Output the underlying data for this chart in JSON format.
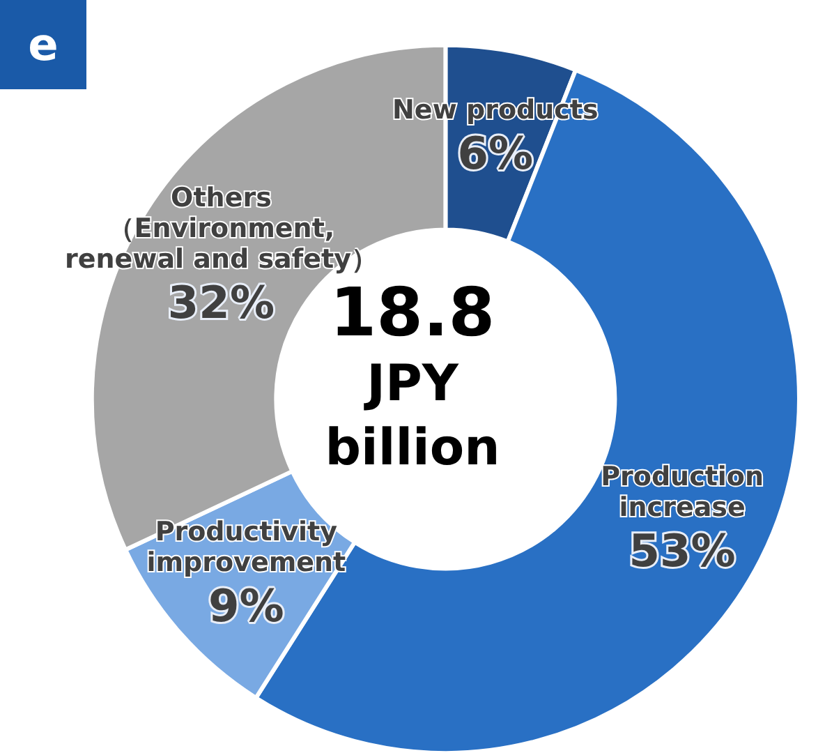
{
  "chart_data": {
    "type": "donut",
    "title": "e",
    "categories": [
      "New products",
      "Production\nincrease",
      "Productivity\nimprovement",
      "Others\n（Environment,\nrenewal and safety）"
    ],
    "values": [
      6,
      53,
      9,
      32
    ],
    "colors": [
      "#1f4f8f",
      "#2970c4",
      "#79a9e3",
      "#a6a6a6"
    ],
    "value_labels": [
      "6%",
      "53%",
      "9%",
      "32%"
    ],
    "annotations": [
      "18.8\nJPY\nbillion"
    ],
    "legend": false
  }
}
